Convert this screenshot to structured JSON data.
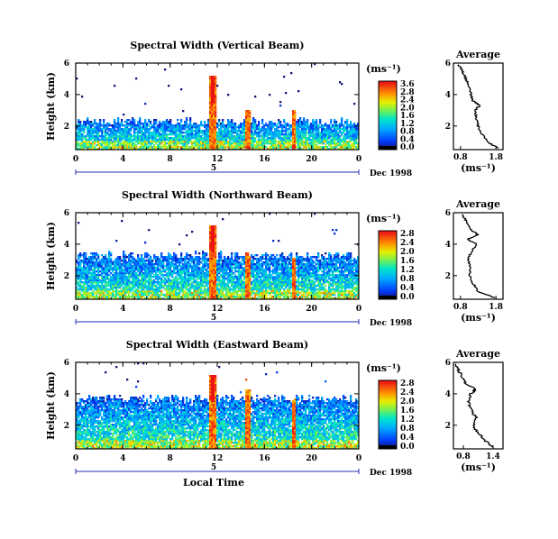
{
  "chart_data": [
    {
      "type": "heatmap",
      "title": "Spectral Width (Vertical Beam)",
      "ylabel": "Height (km)",
      "xlabel": "",
      "x_ticks": [
        "0",
        "4",
        "8",
        "12",
        "16",
        "20",
        "0"
      ],
      "y_ticks": [
        "2",
        "4",
        "6"
      ],
      "xlim": [
        0,
        24
      ],
      "ylim": [
        0.5,
        6
      ],
      "date_label": "Dec 1998",
      "day_label": "5",
      "colorbar": {
        "unit": "(ms⁻¹)",
        "ticks": [
          "0.0",
          "0.4",
          "0.8",
          "1.2",
          "1.6",
          "2.0",
          "2.4",
          "2.8",
          "3.6"
        ],
        "range": [
          0,
          3.6
        ]
      },
      "average_profile": {
        "title": "Average",
        "x_ticks": [
          "0.8",
          "1.8"
        ],
        "xlim": [
          0.6,
          2.0
        ],
        "y_ticks": [
          "2",
          "4",
          "6"
        ],
        "xlabel": "(ms⁻¹)",
        "heights": [
          0.6,
          1.0,
          1.5,
          2.0,
          2.5,
          3.0,
          3.3,
          3.6,
          4.0,
          4.5,
          5.0,
          5.5,
          5.9
        ],
        "values": [
          1.85,
          1.55,
          1.4,
          1.3,
          1.25,
          1.2,
          1.35,
          1.15,
          1.1,
          1.05,
          0.95,
          0.85,
          0.75
        ]
      }
    },
    {
      "type": "heatmap",
      "title": "Spectral Width (Northward Beam)",
      "ylabel": "Height (km)",
      "xlabel": "",
      "x_ticks": [
        "0",
        "4",
        "8",
        "12",
        "16",
        "20",
        "0"
      ],
      "y_ticks": [
        "2",
        "4",
        "6"
      ],
      "xlim": [
        0,
        24
      ],
      "ylim": [
        0.5,
        6
      ],
      "date_label": "Dec 1998",
      "day_label": "5",
      "colorbar": {
        "unit": "(ms⁻¹)",
        "ticks": [
          "0.0",
          "0.4",
          "0.8",
          "1.2",
          "1.6",
          "2.0",
          "2.4",
          "2.8"
        ],
        "range": [
          0,
          2.8
        ]
      },
      "average_profile": {
        "title": "Average",
        "x_ticks": [
          "0.8",
          "1.8"
        ],
        "xlim": [
          0.6,
          2.0
        ],
        "y_ticks": [
          "2",
          "4",
          "6"
        ],
        "xlabel": "(ms⁻¹)",
        "heights": [
          0.6,
          1.0,
          1.5,
          2.0,
          2.5,
          3.0,
          3.5,
          4.0,
          4.3,
          4.6,
          5.0,
          5.5,
          5.9
        ],
        "values": [
          1.75,
          1.3,
          1.15,
          1.05,
          1.1,
          1.0,
          1.1,
          1.25,
          1.0,
          1.3,
          1.05,
          0.95,
          0.85
        ]
      }
    },
    {
      "type": "heatmap",
      "title": "Spectral Width (Eastward Beam)",
      "ylabel": "Height (km)",
      "xlabel": "Local Time",
      "x_ticks": [
        "0",
        "4",
        "8",
        "12",
        "16",
        "20",
        "0"
      ],
      "y_ticks": [
        "2",
        "4",
        "6"
      ],
      "xlim": [
        0,
        24
      ],
      "ylim": [
        0.5,
        6
      ],
      "date_label": "Dec 1998",
      "day_label": "5",
      "colorbar": {
        "unit": "(ms⁻¹)",
        "ticks": [
          "0.0",
          "0.4",
          "0.8",
          "1.2",
          "1.6",
          "2.0",
          "2.4",
          "2.8"
        ],
        "range": [
          0,
          2.8
        ]
      },
      "average_profile": {
        "title": "Average",
        "x_ticks": [
          "0.8",
          "1.4"
        ],
        "xlim": [
          0.6,
          1.6
        ],
        "y_ticks": [
          "2",
          "4",
          "6"
        ],
        "xlabel": "(ms⁻¹)",
        "heights": [
          0.6,
          1.0,
          1.5,
          2.0,
          2.5,
          3.0,
          3.5,
          4.0,
          4.3,
          4.6,
          5.0,
          5.5,
          5.9
        ],
        "values": [
          1.4,
          1.25,
          1.1,
          1.0,
          1.05,
          0.95,
          0.9,
          0.95,
          1.05,
          0.85,
          0.8,
          0.7,
          0.65
        ]
      }
    }
  ]
}
